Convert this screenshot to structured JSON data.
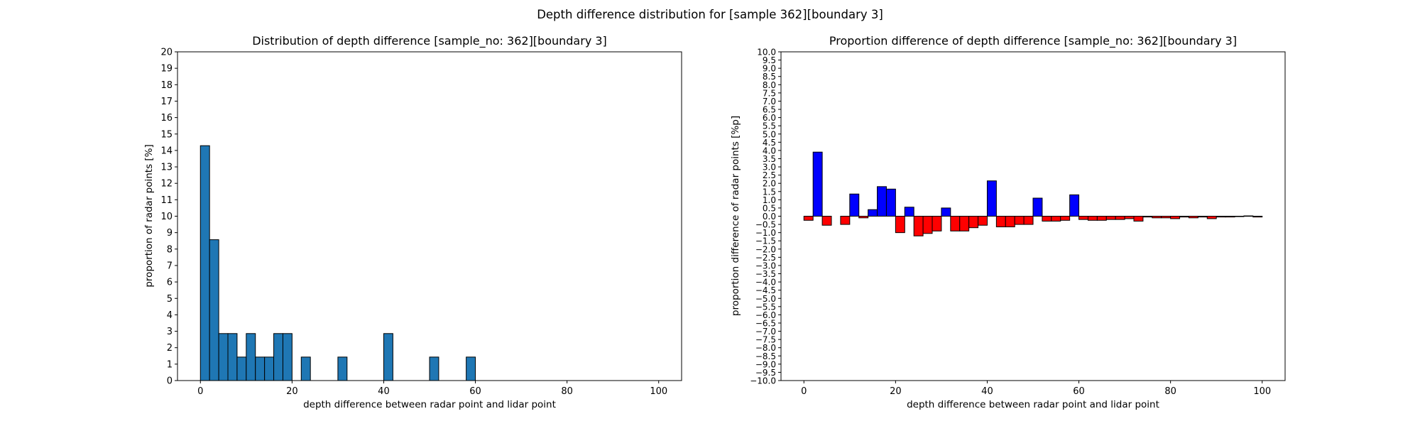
{
  "figure": {
    "suptitle": "Depth difference distribution for [sample 362][boundary 3]"
  },
  "chart_data": [
    {
      "type": "bar",
      "title": "Distribution of depth difference [sample_no: 362][boundary 3]",
      "xlabel": "depth difference between radar point and lidar point",
      "ylabel": "proportion of radar points [%]",
      "xlim": [
        -5,
        105
      ],
      "ylim": [
        0,
        20
      ],
      "xticks": [
        0,
        20,
        40,
        60,
        80,
        100
      ],
      "yticks": [
        0,
        1,
        2,
        3,
        4,
        5,
        6,
        7,
        8,
        9,
        10,
        11,
        12,
        13,
        14,
        15,
        16,
        17,
        18,
        19,
        20
      ],
      "bin_width": 2,
      "grid": false,
      "colors": {
        "bar": "#1f77b4",
        "edge": "#000000"
      },
      "bins": [
        {
          "x": 0,
          "value": 14.29
        },
        {
          "x": 2,
          "value": 8.57
        },
        {
          "x": 4,
          "value": 2.86
        },
        {
          "x": 6,
          "value": 2.86
        },
        {
          "x": 8,
          "value": 1.43
        },
        {
          "x": 10,
          "value": 2.86
        },
        {
          "x": 12,
          "value": 1.43
        },
        {
          "x": 14,
          "value": 1.43
        },
        {
          "x": 16,
          "value": 2.86
        },
        {
          "x": 18,
          "value": 2.86
        },
        {
          "x": 22,
          "value": 1.43
        },
        {
          "x": 30,
          "value": 1.43
        },
        {
          "x": 40,
          "value": 2.86
        },
        {
          "x": 50,
          "value": 1.43
        },
        {
          "x": 58,
          "value": 1.43
        }
      ]
    },
    {
      "type": "bar",
      "title": "Proportion difference of depth difference [sample_no: 362][boundary 3]",
      "xlabel": "depth difference between radar point and lidar point",
      "ylabel": "proportion difference of radar points [%p]",
      "xlim": [
        -5,
        105
      ],
      "ylim": [
        -10,
        10
      ],
      "xticks": [
        0,
        20,
        40,
        60,
        80,
        100
      ],
      "yticks": [
        "10.0",
        "9.5",
        "9.0",
        "8.5",
        "8.0",
        "7.5",
        "7.0",
        "6.5",
        "6.0",
        "5.5",
        "5.0",
        "4.5",
        "4.0",
        "3.5",
        "3.0",
        "2.5",
        "2.0",
        "1.5",
        "1.0",
        "0.5",
        "0.0",
        "−0.5",
        "−1.0",
        "−1.5",
        "−2.0",
        "−2.5",
        "−3.0",
        "−3.5",
        "−4.0",
        "−4.5",
        "−5.0",
        "−5.5",
        "−6.0",
        "−6.5",
        "−7.0",
        "−7.5",
        "−8.0",
        "−8.5",
        "−9.0",
        "−9.5",
        "−10.0"
      ],
      "bin_width": 2,
      "grid": false,
      "colors": {
        "positive": "#0000ff",
        "negative": "#ff0000",
        "edge": "#000000"
      },
      "bins": [
        {
          "x": 0,
          "value": -0.25
        },
        {
          "x": 2,
          "value": 3.9
        },
        {
          "x": 4,
          "value": -0.55
        },
        {
          "x": 6,
          "value": 0.0
        },
        {
          "x": 8,
          "value": -0.5
        },
        {
          "x": 10,
          "value": 1.35
        },
        {
          "x": 12,
          "value": -0.1
        },
        {
          "x": 14,
          "value": 0.4
        },
        {
          "x": 16,
          "value": 1.8
        },
        {
          "x": 18,
          "value": 1.65
        },
        {
          "x": 20,
          "value": -1.0
        },
        {
          "x": 22,
          "value": 0.55
        },
        {
          "x": 24,
          "value": -1.2
        },
        {
          "x": 26,
          "value": -1.05
        },
        {
          "x": 28,
          "value": -0.9
        },
        {
          "x": 30,
          "value": 0.5
        },
        {
          "x": 32,
          "value": -0.9
        },
        {
          "x": 34,
          "value": -0.9
        },
        {
          "x": 36,
          "value": -0.7
        },
        {
          "x": 38,
          "value": -0.55
        },
        {
          "x": 40,
          "value": 2.15
        },
        {
          "x": 42,
          "value": -0.65
        },
        {
          "x": 44,
          "value": -0.65
        },
        {
          "x": 46,
          "value": -0.5
        },
        {
          "x": 48,
          "value": -0.5
        },
        {
          "x": 50,
          "value": 1.1
        },
        {
          "x": 52,
          "value": -0.3
        },
        {
          "x": 54,
          "value": -0.3
        },
        {
          "x": 56,
          "value": -0.25
        },
        {
          "x": 58,
          "value": 1.3
        },
        {
          "x": 60,
          "value": -0.2
        },
        {
          "x": 62,
          "value": -0.25
        },
        {
          "x": 64,
          "value": -0.25
        },
        {
          "x": 66,
          "value": -0.2
        },
        {
          "x": 68,
          "value": -0.2
        },
        {
          "x": 70,
          "value": -0.15
        },
        {
          "x": 72,
          "value": -0.3
        },
        {
          "x": 74,
          "value": -0.05
        },
        {
          "x": 76,
          "value": -0.1
        },
        {
          "x": 78,
          "value": -0.1
        },
        {
          "x": 80,
          "value": -0.15
        },
        {
          "x": 82,
          "value": -0.05
        },
        {
          "x": 84,
          "value": -0.1
        },
        {
          "x": 86,
          "value": -0.05
        },
        {
          "x": 88,
          "value": -0.15
        },
        {
          "x": 90,
          "value": -0.05
        },
        {
          "x": 92,
          "value": -0.05
        },
        {
          "x": 94,
          "value": -0.02
        },
        {
          "x": 96,
          "value": 0.02
        },
        {
          "x": 98,
          "value": -0.05
        }
      ]
    }
  ]
}
